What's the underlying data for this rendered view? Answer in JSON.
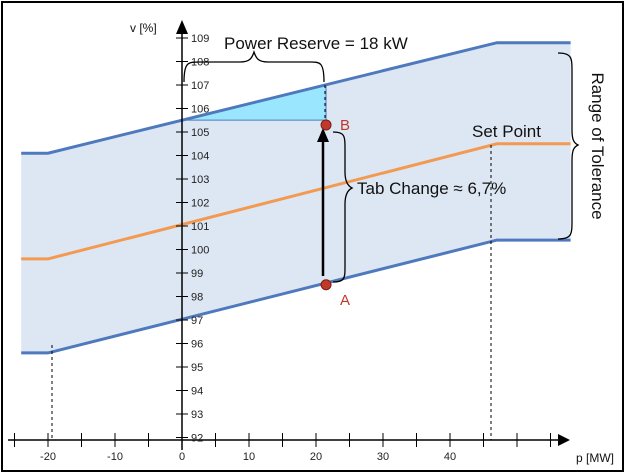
{
  "colors": {
    "band_fill": "#dde7f3",
    "band_edge": "#4f79bd",
    "set_point_line": "#f29a52",
    "reserve_fill": "#9be6ff",
    "point_fill": "#c0392b",
    "point_label": "#c0392b",
    "frame": "#000000"
  },
  "axis": {
    "y_title": "v [%]",
    "x_title": "p [MW]",
    "y_ticks": [
      "109",
      "108",
      "107",
      "106",
      "105",
      "104",
      "103",
      "102",
      "101",
      "100",
      "99",
      "98",
      "97",
      "96",
      "95",
      "94",
      "93",
      "92"
    ],
    "x_ticks": [
      "-20",
      "-10",
      "0",
      "10",
      "20",
      "30",
      "40"
    ]
  },
  "labels": {
    "power_reserve": "Power Reserve = 18 kW",
    "set_point": "Set Point",
    "tab_change": "Tab Change ≈ 6,7%",
    "range": "Range of Tolerance",
    "point_a": "A",
    "point_b": "B"
  },
  "chart_data": {
    "type": "line",
    "xlabel": "p [MW]",
    "ylabel": "v [%]",
    "xlim": [
      -24,
      60
    ],
    "ylim": [
      91.5,
      109.5
    ],
    "series": [
      {
        "name": "upper",
        "x": [
          -24,
          -20,
          47,
          58
        ],
        "y": [
          104.1,
          104.1,
          108.8,
          108.8
        ]
      },
      {
        "name": "Set Point",
        "x": [
          -24,
          -20,
          47,
          58
        ],
        "y": [
          99.6,
          99.6,
          104.5,
          104.5
        ]
      },
      {
        "name": "lower",
        "x": [
          -24,
          -20,
          47,
          58
        ],
        "y": [
          95.6,
          95.6,
          100.4,
          100.4
        ]
      }
    ],
    "points": [
      {
        "name": "A",
        "x": 21.5,
        "y": 98.5
      },
      {
        "name": "B",
        "x": 21.5,
        "y": 105.3
      }
    ],
    "annotations": [
      "Power Reserve = 18 kW",
      "Tab Change ≈ 6,7%",
      "Range of Tolerance",
      "Set Point"
    ]
  }
}
